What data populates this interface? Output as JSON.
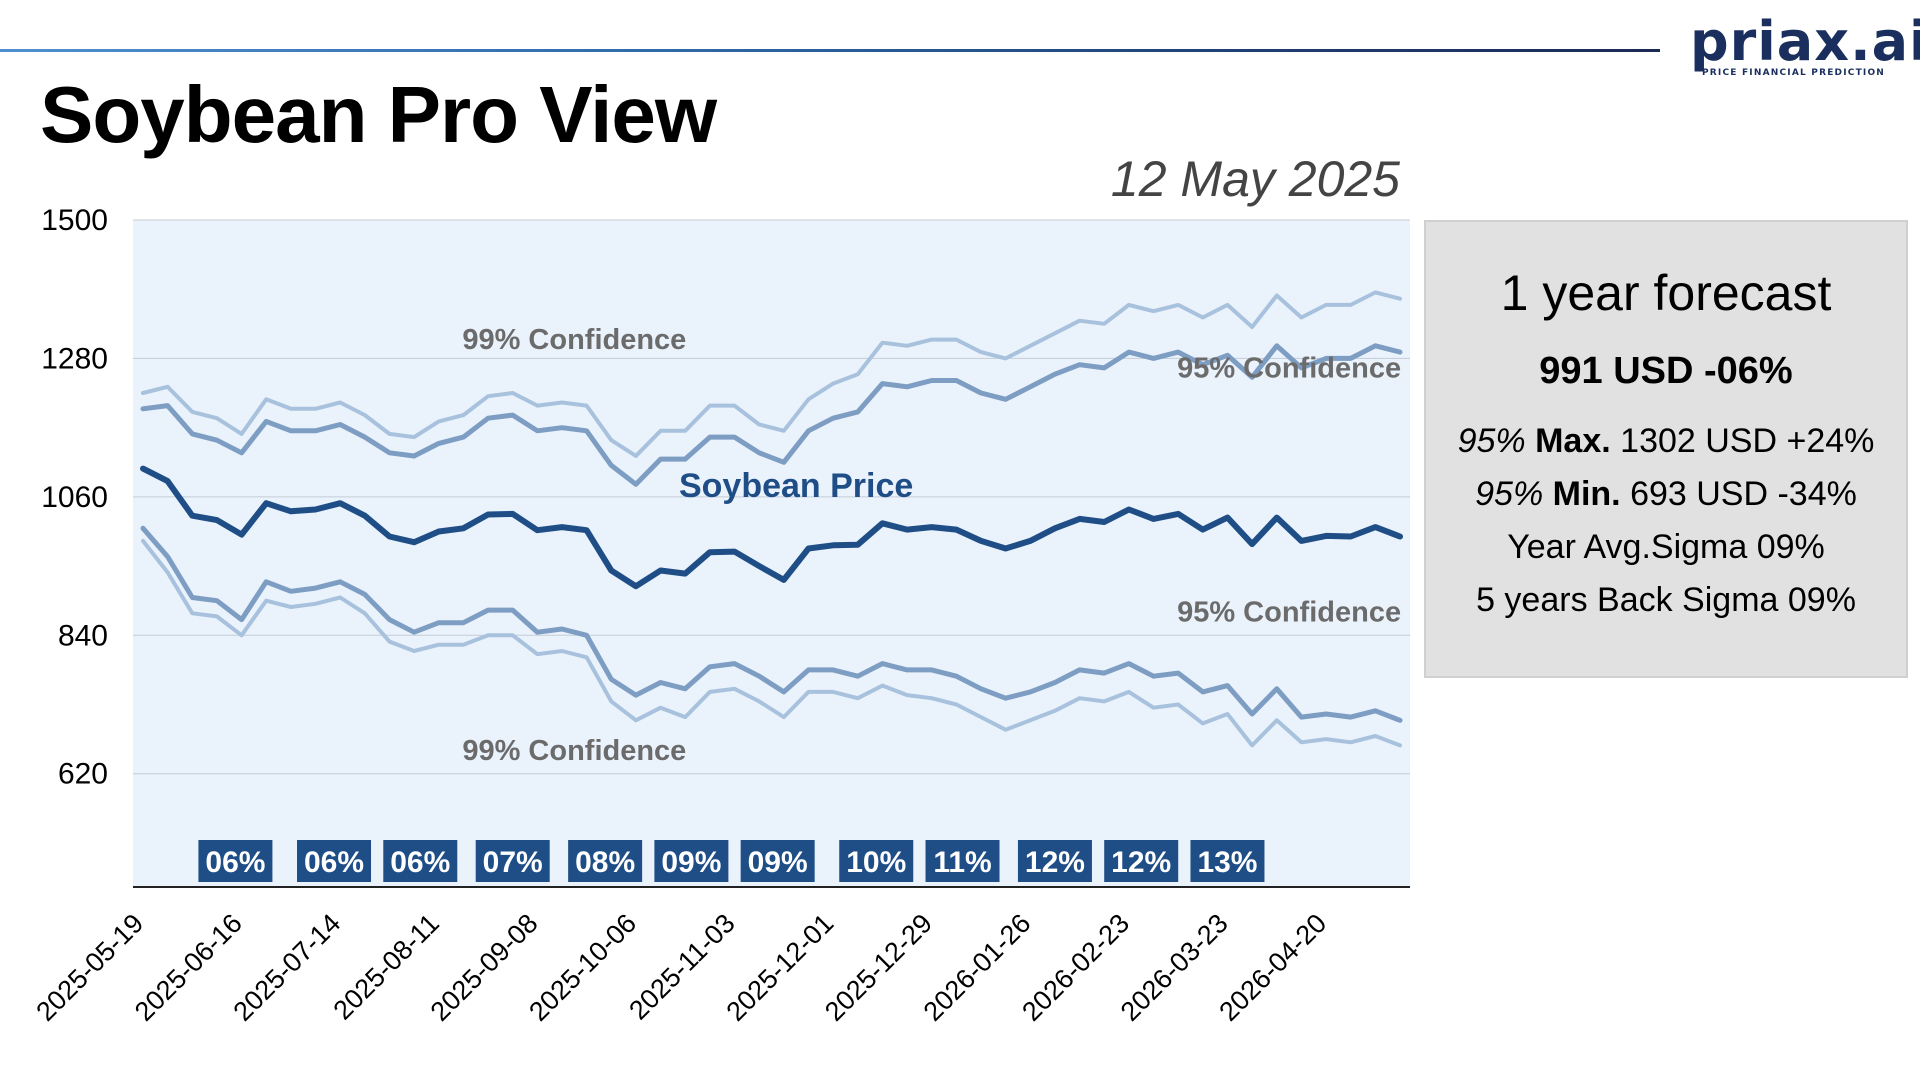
{
  "header": {
    "title": "Soybean Pro View",
    "date": "12 May 2025",
    "logo": {
      "wordmark": "priax.ai",
      "tagline": "PRICE FINANCIAL PREDICTION"
    }
  },
  "forecast_box": {
    "title": "1 year forecast",
    "headline": "991 USD -06%",
    "max": {
      "prefix": "95%",
      "label": "Max.",
      "value": "1302 USD +24%"
    },
    "min": {
      "prefix": "95%",
      "label": "Min.",
      "value": "693 USD -34%"
    },
    "avg_sigma": "Year Avg.Sigma 09%",
    "back_sigma": "5 years Back Sigma 09%"
  },
  "colors": {
    "price": "#1f4e87",
    "conf95": "#7d9dc3",
    "conf99": "#a8c2dd",
    "plot_bg": "#eaf2fc",
    "sigma_badge": "#1f4e87",
    "annotation_gray": "#6b6b6b"
  },
  "chart_data": {
    "type": "line",
    "ylim": [
      440,
      1500
    ],
    "yticks": [
      620,
      840,
      1060,
      1280,
      1500
    ],
    "grid": true,
    "x_tick_labels": [
      "2025-05-19",
      "2025-06-16",
      "2025-07-14",
      "2025-08-11",
      "2025-09-08",
      "2025-10-06",
      "2025-11-03",
      "2025-12-01",
      "2025-12-29",
      "2026-01-26",
      "2026-02-23",
      "2026-03-23",
      "2026-04-20"
    ],
    "weeks": 52,
    "series": [
      {
        "name": "Soybean Price",
        "values": [
          1105,
          1085,
          1030,
          1023,
          1000,
          1050,
          1037,
          1040,
          1050,
          1030,
          997,
          988,
          1005,
          1010,
          1032,
          1033,
          1007,
          1012,
          1007,
          943,
          918,
          943,
          938,
          972,
          973,
          950,
          928,
          978,
          983,
          984,
          1018,
          1008,
          1012,
          1008,
          990,
          978,
          990,
          1010,
          1025,
          1020,
          1040,
          1025,
          1033,
          1008,
          1027,
          985,
          1027,
          990,
          998,
          997,
          1012,
          997
        ]
      },
      {
        "name": "95% Confidence",
        "values": [
          1200,
          1205,
          1160,
          1150,
          1130,
          1180,
          1165,
          1165,
          1175,
          1155,
          1130,
          1125,
          1145,
          1155,
          1185,
          1190,
          1165,
          1170,
          1165,
          1110,
          1080,
          1120,
          1120,
          1155,
          1155,
          1130,
          1115,
          1165,
          1185,
          1195,
          1240,
          1235,
          1245,
          1245,
          1225,
          1215,
          1235,
          1255,
          1270,
          1265,
          1290,
          1280,
          1290,
          1270,
          1285,
          1250,
          1300,
          1265,
          1280,
          1280,
          1300,
          1290
        ]
      },
      {
        "name": "95% Confidence",
        "values": [
          1010,
          965,
          900,
          895,
          865,
          925,
          910,
          915,
          925,
          905,
          865,
          845,
          860,
          860,
          880,
          880,
          845,
          850,
          840,
          770,
          745,
          765,
          755,
          790,
          795,
          775,
          750,
          785,
          785,
          775,
          795,
          785,
          785,
          775,
          755,
          740,
          750,
          765,
          785,
          780,
          795,
          775,
          780,
          750,
          760,
          715,
          755,
          710,
          715,
          710,
          720,
          705
        ]
      },
      {
        "name": "99% Confidence",
        "values": [
          1225,
          1235,
          1195,
          1185,
          1160,
          1215,
          1200,
          1200,
          1210,
          1190,
          1160,
          1155,
          1180,
          1190,
          1220,
          1225,
          1205,
          1210,
          1205,
          1150,
          1125,
          1165,
          1165,
          1205,
          1205,
          1175,
          1165,
          1215,
          1240,
          1255,
          1305,
          1300,
          1310,
          1310,
          1290,
          1280,
          1300,
          1320,
          1340,
          1335,
          1365,
          1355,
          1365,
          1345,
          1365,
          1330,
          1380,
          1345,
          1365,
          1365,
          1385,
          1375
        ]
      },
      {
        "name": "99% Confidence",
        "values": [
          990,
          940,
          875,
          870,
          840,
          895,
          885,
          890,
          900,
          875,
          830,
          815,
          825,
          825,
          840,
          840,
          810,
          815,
          805,
          735,
          705,
          725,
          710,
          750,
          755,
          735,
          710,
          750,
          750,
          740,
          760,
          745,
          740,
          730,
          710,
          690,
          705,
          720,
          740,
          735,
          750,
          725,
          730,
          700,
          715,
          665,
          705,
          670,
          675,
          670,
          680,
          665
        ]
      }
    ],
    "series_labels": [
      {
        "text": "Soybean Price",
        "x": 26.5,
        "y": 1060
      },
      {
        "text": "99% Confidence",
        "x": 17.5,
        "y": 1295
      },
      {
        "text": "95% Confidence",
        "x": 46.5,
        "y": 1250
      },
      {
        "text": "95% Confidence",
        "x": 46.5,
        "y": 862
      },
      {
        "text": "99% Confidence",
        "x": 17.5,
        "y": 642
      }
    ],
    "sigma_labels": [
      {
        "text": "06%",
        "x": 3.75
      },
      {
        "text": "06%",
        "x": 7.75
      },
      {
        "text": "06%",
        "x": 11.25
      },
      {
        "text": "07%",
        "x": 15.0
      },
      {
        "text": "08%",
        "x": 18.75
      },
      {
        "text": "09%",
        "x": 22.25
      },
      {
        "text": "09%",
        "x": 25.75
      },
      {
        "text": "10%",
        "x": 29.75
      },
      {
        "text": "11%",
        "x": 33.25
      },
      {
        "text": "12%",
        "x": 37.0
      },
      {
        "text": "12%",
        "x": 40.5
      },
      {
        "text": "13%",
        "x": 44.0
      }
    ]
  }
}
